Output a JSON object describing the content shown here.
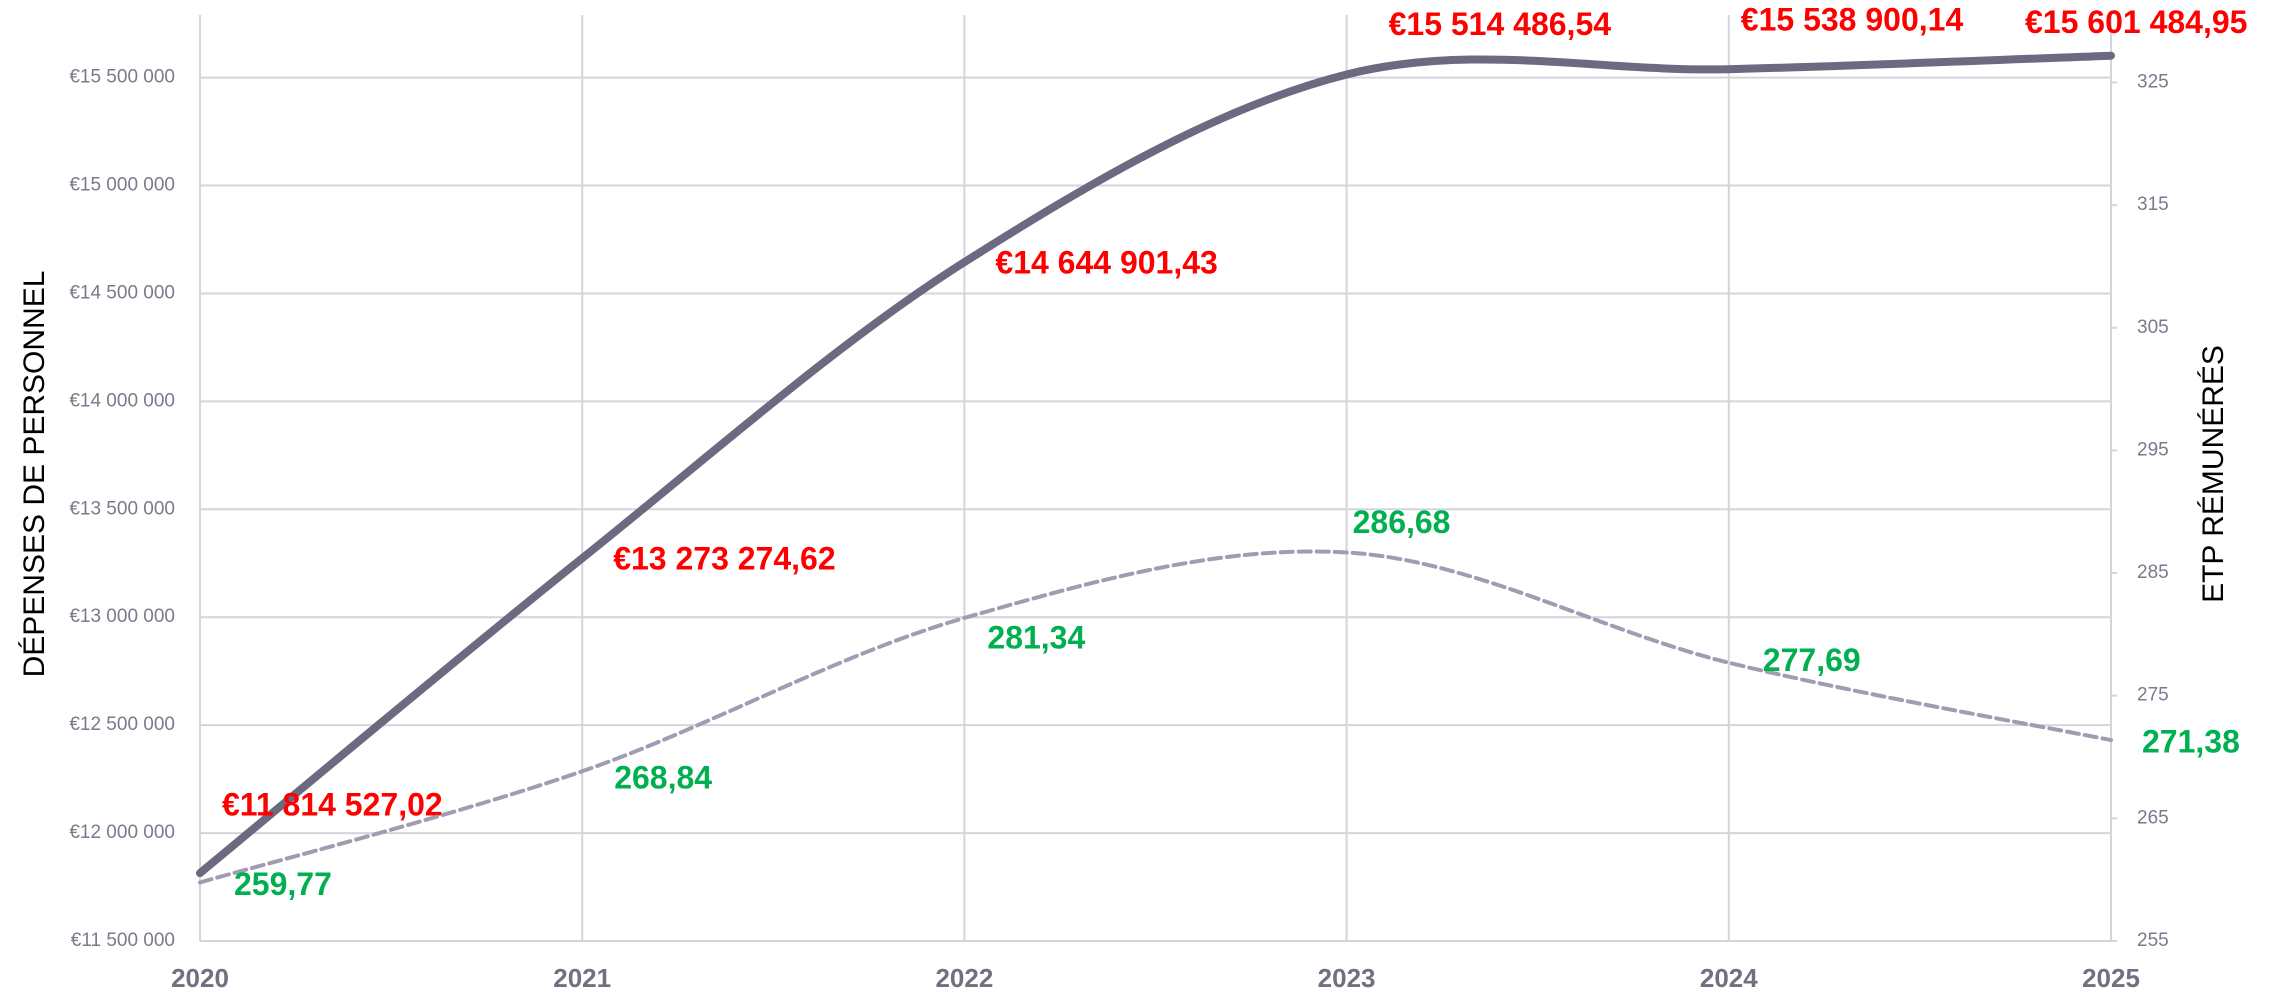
{
  "chart_data": {
    "type": "line",
    "categories": [
      "2020",
      "2021",
      "2022",
      "2023",
      "2024",
      "2025"
    ],
    "ylabel": "DÉPENSES DE PERSONNEL",
    "y2label": "ETP RÉMUNÉRÉS",
    "ylim": [
      11500000,
      15790000
    ],
    "yticks": [
      {
        "value": 11500000,
        "label": "€11 500 000"
      },
      {
        "value": 12000000,
        "label": "€12 000 000"
      },
      {
        "value": 12500000,
        "label": "€12 500 000"
      },
      {
        "value": 13000000,
        "label": "€13 000 000"
      },
      {
        "value": 13500000,
        "label": "€13 500 000"
      },
      {
        "value": 14000000,
        "label": "€14 000 000"
      },
      {
        "value": 14500000,
        "label": "€14 500 000"
      },
      {
        "value": 15000000,
        "label": "€15 000 000"
      },
      {
        "value": 15500000,
        "label": "€15 500 000"
      }
    ],
    "y2lim": [
      255,
      330.5
    ],
    "y2ticks": [
      255,
      265,
      275,
      285,
      295,
      305,
      315,
      325
    ],
    "grid": true,
    "series": [
      {
        "name": "DÉPENSES DE PERSONNEL",
        "color": "#6b6a80",
        "label_color": "#ff0000",
        "values": [
          11814527.02,
          13273274.62,
          14644901.43,
          15514486.54,
          15538900.14,
          15601484.95
        ],
        "value_labels": [
          "€11 814 527,02",
          "€13 273 274,62",
          "€14 644 901,43",
          "€15 514 486,54",
          "€15 538 900,14",
          "€15 601 484,95"
        ]
      },
      {
        "name": "ETP RÉMUNÉRÉS",
        "color": "#a29cb2",
        "label_color": "#00b050",
        "axis": "y2",
        "dashed": true,
        "values": [
          259.77,
          268.84,
          281.34,
          286.68,
          277.69,
          271.38
        ],
        "value_labels": [
          "259,77",
          "268,84",
          "281,34",
          "286,68",
          "277,69",
          "271,38"
        ]
      }
    ]
  }
}
